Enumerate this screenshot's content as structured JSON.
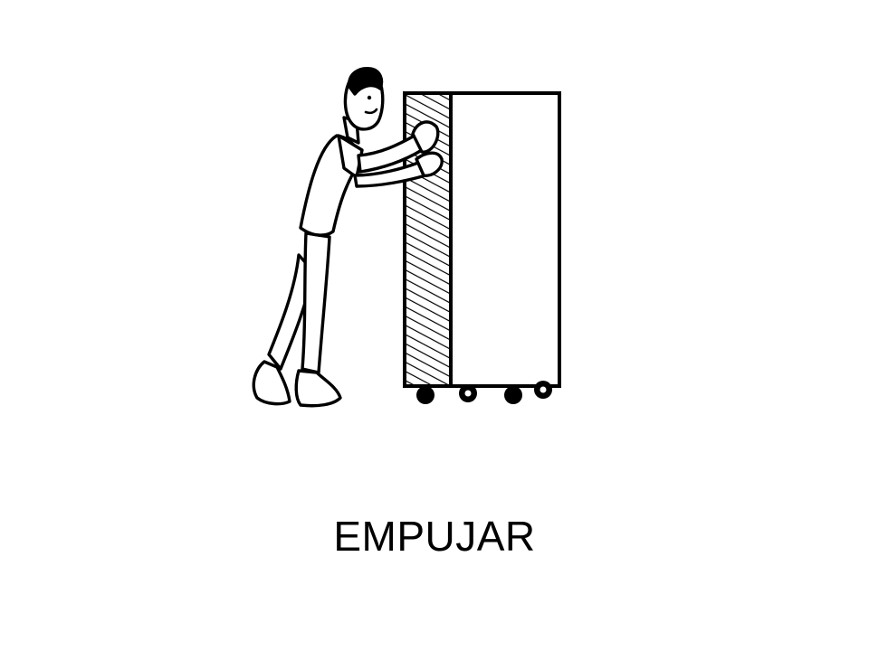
{
  "caption": "EMPUJAR",
  "illustration": {
    "icon": "person-pushing-cart-icon"
  },
  "colors": {
    "background": "#ffffff",
    "ink": "#000000"
  }
}
